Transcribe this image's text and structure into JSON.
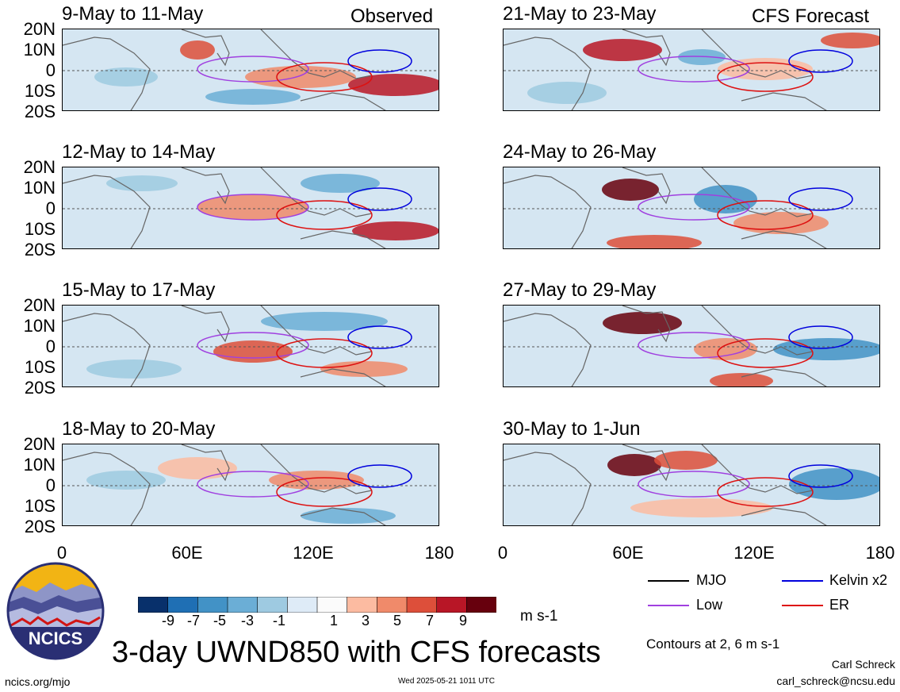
{
  "header": {
    "observed_label": "Observed",
    "forecast_label": "CFS Forecast"
  },
  "lat_labels": [
    "20N",
    "10N",
    "0",
    "10S",
    "20S"
  ],
  "lon_labels": [
    "0",
    "60E",
    "120E",
    "180"
  ],
  "panels": [
    {
      "title": "9-May to 11-May"
    },
    {
      "title": "21-May to 23-May"
    },
    {
      "title": "12-May to 14-May"
    },
    {
      "title": "24-May to 26-May"
    },
    {
      "title": "15-May to 17-May"
    },
    {
      "title": "27-May to 29-May"
    },
    {
      "title": "18-May to 20-May"
    },
    {
      "title": "30-May to 1-Jun"
    }
  ],
  "colorbar": {
    "ticks": [
      "-9",
      "-7",
      "-5",
      "-3",
      "-1",
      "1",
      "3",
      "5",
      "7",
      "9"
    ],
    "units": "m s-1",
    "colors": [
      "#08306b",
      "#1f6fb4",
      "#4292c6",
      "#6baed6",
      "#9ecae1",
      "#deebf7",
      "#fbfbfb",
      "#fcbba1",
      "#f08a6a",
      "#dd4f3a",
      "#b81626",
      "#67000d"
    ]
  },
  "legend": {
    "items": [
      {
        "label": "MJO",
        "color": "#000000"
      },
      {
        "label": "Kelvin x2",
        "color": "#0000dd"
      },
      {
        "label": "Low",
        "color": "#a040e0"
      },
      {
        "label": "ER",
        "color": "#dd1111"
      }
    ],
    "contour_note": "Contours at 2, 6 m s-1"
  },
  "logo": {
    "text": "NCICS"
  },
  "main_title": "3-day UWND850 with CFS forecasts",
  "footer": {
    "url": "ncics.org/mjo",
    "timestamp": "Wed 2025-05-21 1011 UTC",
    "author": "Carl Schreck",
    "email": "carl_schreck@ncsu.edu"
  }
}
